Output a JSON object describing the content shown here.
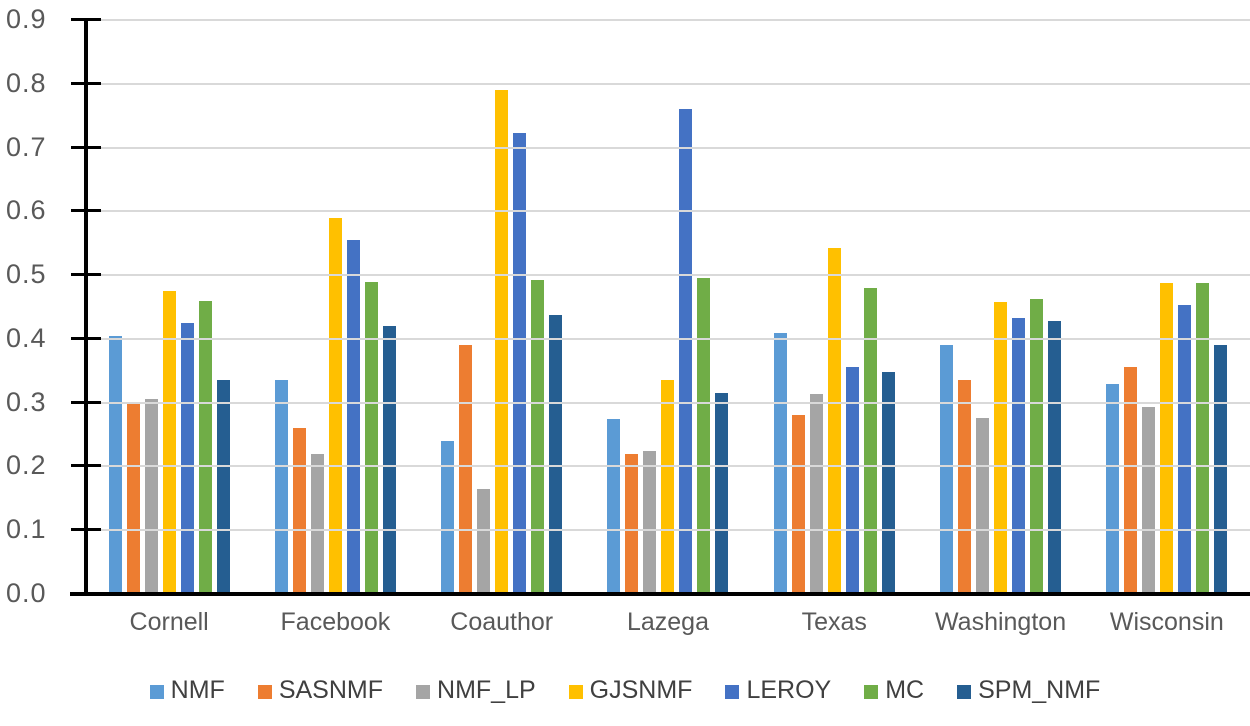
{
  "chart_data": {
    "type": "bar",
    "title": "",
    "xlabel": "",
    "ylabel": "",
    "grid": true,
    "legend_position": "bottom",
    "ylim": [
      0,
      0.9
    ],
    "yticks": [
      0.0,
      0.1,
      0.2,
      0.3,
      0.4,
      0.5,
      0.6,
      0.7,
      0.8,
      0.9
    ],
    "ytick_labels": [
      "0.0",
      "0.1",
      "0.2",
      "0.3",
      "0.4",
      "0.5",
      "0.6",
      "0.7",
      "0.8",
      "0.9"
    ],
    "categories": [
      "Cornell",
      "Facebook",
      "Coauthor",
      "Lazega",
      "Texas",
      "Washington",
      "Wisconsin"
    ],
    "series": [
      {
        "name": "NMF",
        "color": "#5B9BD5",
        "values": [
          0.405,
          0.335,
          0.24,
          0.275,
          0.41,
          0.39,
          0.33
        ]
      },
      {
        "name": "SASNMF",
        "color": "#ED7D31",
        "values": [
          0.3,
          0.26,
          0.39,
          0.22,
          0.28,
          0.335,
          0.356
        ]
      },
      {
        "name": "NMF_LP",
        "color": "#A5A5A5",
        "values": [
          0.305,
          0.22,
          0.165,
          0.225,
          0.313,
          0.276,
          0.293
        ]
      },
      {
        "name": "GJSNMF",
        "color": "#FFC000",
        "values": [
          0.475,
          0.59,
          0.79,
          0.335,
          0.543,
          0.458,
          0.487
        ]
      },
      {
        "name": "LEROY",
        "color": "#4472C4",
        "values": [
          0.425,
          0.555,
          0.723,
          0.76,
          0.356,
          0.432,
          0.453
        ]
      },
      {
        "name": "MC",
        "color": "#70AD47",
        "values": [
          0.46,
          0.49,
          0.492,
          0.496,
          0.48,
          0.462,
          0.488
        ]
      },
      {
        "name": "SPM_NMF",
        "color": "#255E91",
        "values": [
          0.335,
          0.42,
          0.437,
          0.315,
          0.348,
          0.428,
          0.39
        ]
      }
    ]
  },
  "colors": {
    "background": "#FFFFFF",
    "gridline": "#D9D9D9",
    "axis": "#000000",
    "tick_label": "#595959",
    "category_label": "#595959",
    "legend_label": "#404040"
  }
}
